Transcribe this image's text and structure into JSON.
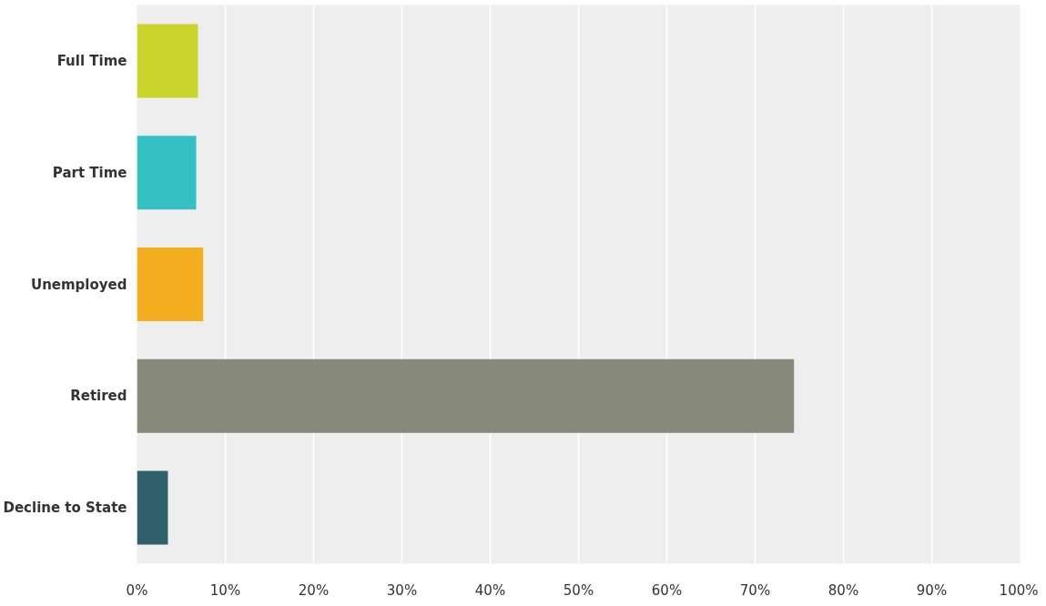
{
  "chart_data": {
    "type": "bar",
    "orientation": "horizontal",
    "categories": [
      "Full Time",
      "Part Time",
      "Unemployed",
      "Retired",
      "Decline to State"
    ],
    "values": [
      6.9,
      6.7,
      7.5,
      74.4,
      3.5
    ],
    "colors": [
      "#c9d52b",
      "#35c1c4",
      "#f5ae1f",
      "#87897a",
      "#2e5f6b"
    ],
    "xlim": [
      0,
      100
    ],
    "xticks": [
      {
        "value": 0,
        "label": "0%"
      },
      {
        "value": 10,
        "label": "10%"
      },
      {
        "value": 20,
        "label": "20%"
      },
      {
        "value": 30,
        "label": "30%"
      },
      {
        "value": 40,
        "label": "40%"
      },
      {
        "value": 50,
        "label": "50%"
      },
      {
        "value": 60,
        "label": "60%"
      },
      {
        "value": 70,
        "label": "70%"
      },
      {
        "value": 80,
        "label": "80%"
      },
      {
        "value": 90,
        "label": "90%"
      },
      {
        "value": 100,
        "label": "100%"
      }
    ],
    "grid": "x"
  }
}
